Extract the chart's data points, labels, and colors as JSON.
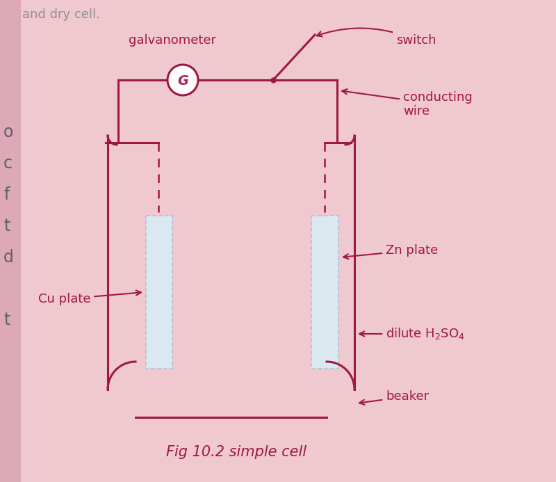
{
  "bg_color": "#f0c8d0",
  "line_color": "#a01840",
  "plate_color": "#dce8f0",
  "plate_edge_color": "#b0c4d4",
  "text_color": "#a01840",
  "galvanometer_label": "galvanometer",
  "switch_label": "switch",
  "conducting_wire_label": "conducting\nwire",
  "zn_plate_label": "Zn plate",
  "cu_plate_label": "Cu plate",
  "dilute_label": "dilute H$_2$SO$_4$",
  "beaker_label": "beaker",
  "fig_caption": "Fig 10.2 simple cell",
  "G_label": "G",
  "left_letters": [
    "o",
    "c",
    "f",
    "t",
    "d",
    " ",
    "t"
  ],
  "title_partial": "and dry cell.",
  "bg_left_color": "#e8b8c8"
}
